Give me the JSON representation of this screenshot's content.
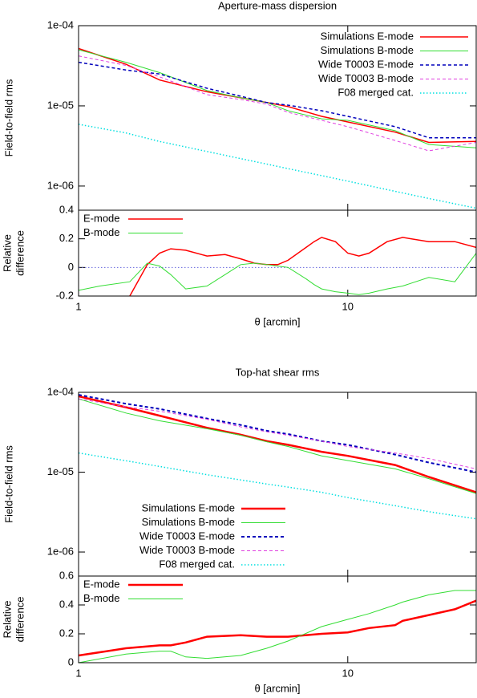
{
  "chart_data": [
    {
      "type": "line",
      "title": "Aperture-mass dispersion",
      "ylabel": "Field-to-field rms",
      "x": [
        1,
        1.5,
        2,
        3,
        4,
        5,
        6,
        8,
        10,
        15,
        20,
        30
      ],
      "xlim": [
        1,
        30
      ],
      "xticks": [
        1,
        10
      ],
      "show_xtick_labels": false,
      "log_x": true,
      "ylim": [
        5e-07,
        0.0001
      ],
      "log_y": true,
      "yticks": [
        {
          "value": 0.0001,
          "label": "1e-04"
        },
        {
          "value": 1e-05,
          "label": "1e-05"
        },
        {
          "value": 1e-06,
          "label": "1e-06"
        }
      ],
      "legend": "top-right",
      "series": [
        {
          "name": "Simulations E-mode",
          "color": "#ff0000",
          "dash": "solid",
          "width": 1.5,
          "values": [
            5.2e-05,
            3.3e-05,
            2.1e-05,
            1.5e-05,
            1.26e-05,
            1.1e-05,
            9.8e-06,
            7.4e-06,
            6.3e-06,
            4.7e-06,
            3.5e-06,
            3.6e-06
          ]
        },
        {
          "name": "Simulations B-mode",
          "color": "#33dd33",
          "dash": "solid",
          "width": 1,
          "values": [
            5e-05,
            3.5e-05,
            2.6e-05,
            1.55e-05,
            1.26e-05,
            1.1e-05,
            8.7e-06,
            6.9e-06,
            6.6e-06,
            4.9e-06,
            3.3e-06,
            3e-06
          ]
        },
        {
          "name": "Wide T0003 E-mode",
          "color": "#0000bb",
          "dash": "dashed",
          "width": 1.5,
          "values": [
            3.5e-05,
            2.8e-05,
            2.5e-05,
            1.66e-05,
            1.32e-05,
            1.1e-05,
            1.02e-05,
            8.7e-06,
            7.4e-06,
            5.5e-06,
            4e-06,
            4e-06
          ]
        },
        {
          "name": "Wide T0003 B-mode",
          "color": "#e040e0",
          "dash": "dashed",
          "width": 1,
          "values": [
            4.2e-05,
            3.2e-05,
            2.3e-05,
            1.38e-05,
            1.2e-05,
            1.05e-05,
            8.3e-06,
            6.6e-06,
            5.5e-06,
            3.7e-06,
            2.75e-06,
            3.5e-06
          ]
        },
        {
          "name": "F08 merged cat.",
          "color": "#00e0e0",
          "dash": "dotted",
          "width": 1.5,
          "values": [
            5.9e-06,
            4.6e-06,
            3.6e-06,
            2.7e-06,
            2.2e-06,
            1.88e-06,
            1.65e-06,
            1.35e-06,
            1.15e-06,
            8.6e-07,
            7e-07,
            5.3e-07
          ]
        }
      ]
    },
    {
      "type": "line",
      "ylabel": [
        "Relative",
        "difference"
      ],
      "xlabel": "θ [arcmin]",
      "x": [
        1,
        1.2,
        1.55,
        1.8,
        2,
        2.2,
        2.5,
        3,
        3.5,
        4,
        4.5,
        5,
        5.5,
        6,
        7,
        7.5,
        8,
        9,
        10,
        11,
        12,
        14,
        16,
        20,
        25,
        30
      ],
      "xlim": [
        1,
        30
      ],
      "xticks": [
        1,
        10
      ],
      "show_xtick_labels": true,
      "log_x": true,
      "ylim": [
        -0.2,
        0.4
      ],
      "log_y": false,
      "yticks": [
        -0.2,
        0,
        0.2,
        0.4
      ],
      "reference_line": {
        "value": 0,
        "color": "#6666dd"
      },
      "legend": "top-left",
      "series": [
        {
          "name": "E-mode",
          "color": "#ff0000",
          "dash": "solid",
          "width": 1.5,
          "values": [
            null,
            null,
            -0.2,
            0.02,
            0.1,
            0.13,
            0.12,
            0.08,
            0.09,
            0.06,
            0.03,
            0.02,
            0.02,
            0.05,
            0.14,
            0.18,
            0.21,
            0.18,
            0.1,
            0.08,
            0.1,
            0.18,
            0.21,
            0.18,
            0.18,
            0.14
          ]
        },
        {
          "name": "B-mode",
          "color": "#33dd33",
          "dash": "solid",
          "width": 1,
          "values": [
            -0.16,
            -0.13,
            -0.1,
            0.03,
            0.01,
            -0.05,
            -0.15,
            -0.13,
            -0.05,
            0.02,
            0.03,
            0.02,
            0.01,
            0,
            -0.08,
            -0.12,
            -0.15,
            -0.17,
            -0.18,
            -0.19,
            -0.18,
            -0.15,
            -0.13,
            -0.07,
            -0.1,
            0.1
          ]
        }
      ]
    },
    {
      "type": "line",
      "title": "Top-hat shear rms",
      "ylabel": "Field-to-field rms",
      "x": [
        1,
        1.5,
        2,
        3,
        4,
        5,
        6,
        8,
        10,
        15,
        20,
        30
      ],
      "xlim": [
        1,
        30
      ],
      "xticks": [
        1,
        10
      ],
      "show_xtick_labels": false,
      "log_x": true,
      "ylim": [
        5e-07,
        0.0001
      ],
      "log_y": true,
      "yticks": [
        {
          "value": 0.0001,
          "label": "1e-04"
        },
        {
          "value": 1e-05,
          "label": "1e-05"
        },
        {
          "value": 1e-06,
          "label": "1e-06"
        }
      ],
      "legend": "bottom-left",
      "series": [
        {
          "name": "Simulations E-mode",
          "color": "#ff0000",
          "dash": "solid",
          "width": 2.5,
          "values": [
            8.9e-05,
            6.5e-05,
            5.1e-05,
            3.6e-05,
            2.95e-05,
            2.45e-05,
            2.2e-05,
            1.8e-05,
            1.6e-05,
            1.23e-05,
            8.7e-06,
            5.6e-06
          ]
        },
        {
          "name": "Simulations B-mode",
          "color": "#33dd33",
          "dash": "solid",
          "width": 1,
          "values": [
            8.3e-05,
            5.5e-05,
            4.4e-05,
            3.5e-05,
            2.9e-05,
            2.4e-05,
            2.1e-05,
            1.6e-05,
            1.4e-05,
            1.1e-05,
            8.3e-06,
            5.4e-06
          ]
        },
        {
          "name": "Wide T0003 E-mode",
          "color": "#0000bb",
          "dash": "dashed",
          "width": 2,
          "values": [
            9.3e-05,
            7.2e-05,
            6.2e-05,
            4.7e-05,
            3.9e-05,
            3.3e-05,
            3e-05,
            2.45e-05,
            2.2e-05,
            1.66e-05,
            1.32e-05,
            1e-05
          ]
        },
        {
          "name": "Wide T0003 B-mode",
          "color": "#e040e0",
          "dash": "dashed",
          "width": 1,
          "values": [
            8.3e-05,
            6.6e-05,
            5.8e-05,
            4.6e-05,
            3.7e-05,
            3.2e-05,
            2.9e-05,
            2.45e-05,
            2.1e-05,
            1.74e-05,
            1.48e-05,
            1.1e-05
          ]
        },
        {
          "name": "F08 merged cat.",
          "color": "#00e0e0",
          "dash": "dotted",
          "width": 1.5,
          "values": [
            1.74e-05,
            1.39e-05,
            1.18e-05,
            9.3e-06,
            8e-06,
            7.1e-06,
            6.5e-06,
            5.6e-06,
            4.8e-06,
            3.8e-06,
            3.2e-06,
            2.6e-06
          ]
        }
      ]
    },
    {
      "type": "line",
      "ylabel": [
        "Relative",
        "difference"
      ],
      "xlabel": "θ [arcmin]",
      "x": [
        1,
        1.5,
        2,
        2.2,
        2.5,
        3,
        4,
        5,
        6,
        8,
        10,
        12,
        15,
        16,
        20,
        25,
        30
      ],
      "xlim": [
        1,
        30
      ],
      "xticks": [
        1,
        10
      ],
      "show_xtick_labels": true,
      "log_x": true,
      "ylim": [
        0,
        0.6
      ],
      "log_y": false,
      "yticks": [
        0,
        0.2,
        0.4,
        0.6
      ],
      "legend": "top-left",
      "series": [
        {
          "name": "E-mode",
          "color": "#ff0000",
          "dash": "solid",
          "width": 2.5,
          "values": [
            0.05,
            0.1,
            0.12,
            0.12,
            0.14,
            0.18,
            0.19,
            0.18,
            0.18,
            0.2,
            0.21,
            0.24,
            0.26,
            0.29,
            0.33,
            0.37,
            0.43
          ]
        },
        {
          "name": "B-mode",
          "color": "#33dd33",
          "dash": "solid",
          "width": 1,
          "values": [
            0,
            0.06,
            0.08,
            0.08,
            0.04,
            0.03,
            0.05,
            0.1,
            0.15,
            0.25,
            0.3,
            0.34,
            0.4,
            0.42,
            0.47,
            0.5,
            0.5
          ]
        }
      ]
    }
  ]
}
